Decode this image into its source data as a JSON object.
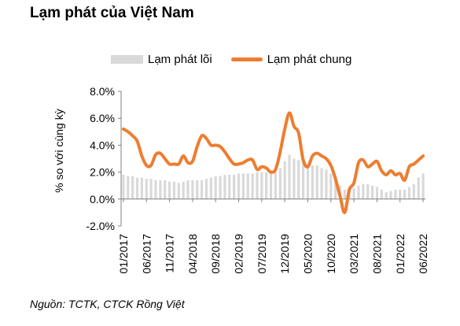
{
  "title": "Lạm phát của Việt Nam",
  "source": "Nguồn: TCTK, CTCK Rồng Việt",
  "colors": {
    "core_bar": "#d9d9d9",
    "headline_line": "#ed7d31",
    "axis": "#808080"
  },
  "chart_data": {
    "type": "bar+line",
    "title": "Lạm phát của Việt Nam",
    "ylabel": "% so với cùng kỳ",
    "xlabel": "",
    "ylim": [
      -2,
      8
    ],
    "yticks": [
      "8.0%",
      "6.0%",
      "4.0%",
      "2.0%",
      "0.0%",
      "-2.0%"
    ],
    "ytick_values": [
      8,
      6,
      4,
      2,
      0,
      -2
    ],
    "legend_position": "top",
    "grid": false,
    "x": [
      "01/2017",
      "02/2017",
      "03/2017",
      "04/2017",
      "05/2017",
      "06/2017",
      "07/2017",
      "08/2017",
      "09/2017",
      "10/2017",
      "11/2017",
      "12/2017",
      "01/2018",
      "02/2018",
      "03/2018",
      "04/2018",
      "05/2018",
      "06/2018",
      "07/2018",
      "08/2018",
      "09/2018",
      "10/2018",
      "11/2018",
      "12/2018",
      "01/2019",
      "02/2019",
      "03/2019",
      "04/2019",
      "05/2019",
      "06/2019",
      "07/2019",
      "08/2019",
      "09/2019",
      "10/2019",
      "11/2019",
      "12/2019",
      "01/2020",
      "02/2020",
      "03/2020",
      "04/2020",
      "05/2020",
      "06/2020",
      "07/2020",
      "08/2020",
      "09/2020",
      "10/2020",
      "11/2020",
      "12/2020",
      "01/2021",
      "02/2021",
      "03/2021",
      "04/2021",
      "05/2021",
      "06/2021",
      "07/2021",
      "08/2021",
      "09/2021",
      "10/2021",
      "11/2021",
      "12/2021",
      "01/2022",
      "02/2022",
      "03/2022",
      "04/2022",
      "05/2022",
      "06/2022"
    ],
    "xtick_labels": [
      "01/2017",
      "06/2017",
      "11/2017",
      "04/2018",
      "09/2018",
      "02/2019",
      "07/2019",
      "12/2019",
      "05/2020",
      "10/2020",
      "03/2021",
      "08/2021",
      "01/2022",
      "06/2022"
    ],
    "series": [
      {
        "name": "Lạm phát lõi",
        "type": "bar",
        "values": [
          1.8,
          1.7,
          1.7,
          1.6,
          1.6,
          1.5,
          1.5,
          1.4,
          1.4,
          1.4,
          1.3,
          1.3,
          1.2,
          1.3,
          1.4,
          1.4,
          1.4,
          1.4,
          1.5,
          1.6,
          1.7,
          1.7,
          1.8,
          1.8,
          1.8,
          1.9,
          1.9,
          1.9,
          1.9,
          2.0,
          2.0,
          2.0,
          2.0,
          2.0,
          2.3,
          2.8,
          3.3,
          3.0,
          2.9,
          2.7,
          2.6,
          2.5,
          2.5,
          2.3,
          2.2,
          1.9,
          1.7,
          1.0,
          0.7,
          0.6,
          0.8,
          1.0,
          1.1,
          1.1,
          1.0,
          0.9,
          0.7,
          0.5,
          0.6,
          0.7,
          0.7,
          0.7,
          0.9,
          1.1,
          1.6,
          1.9
        ]
      },
      {
        "name": "Lạm phát chung",
        "type": "line",
        "values": [
          5.2,
          5.0,
          4.7,
          4.3,
          3.2,
          2.5,
          2.5,
          3.3,
          3.4,
          3.0,
          2.6,
          2.6,
          2.6,
          3.2,
          2.7,
          2.8,
          3.9,
          4.7,
          4.5,
          4.0,
          4.0,
          3.9,
          3.5,
          3.0,
          2.6,
          2.6,
          2.7,
          2.9,
          2.9,
          2.2,
          2.4,
          2.3,
          2.0,
          2.2,
          3.5,
          5.2,
          6.4,
          5.4,
          4.9,
          2.9,
          2.4,
          3.2,
          3.4,
          3.2,
          3.0,
          2.5,
          1.5,
          0.2,
          -1.0,
          0.7,
          1.2,
          2.7,
          2.9,
          2.4,
          2.6,
          2.8,
          2.1,
          1.8,
          2.1,
          1.8,
          1.9,
          1.4,
          2.4,
          2.6,
          2.9,
          3.2
        ]
      }
    ]
  }
}
